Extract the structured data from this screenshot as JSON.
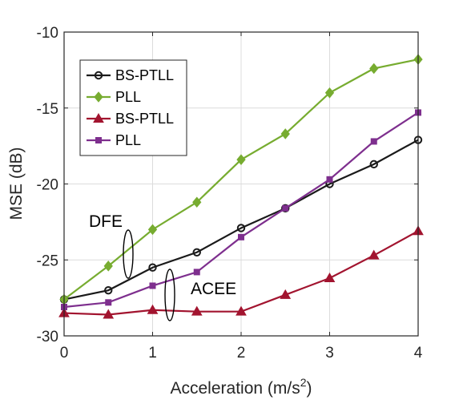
{
  "chart_data": {
    "type": "line",
    "xlabel_main": "Acceleration (m/s",
    "xlabel_sup": "2",
    "xlabel_close": ")",
    "ylabel": "MSE (dB)",
    "xlim": [
      0,
      4
    ],
    "ylim": [
      -30,
      -10
    ],
    "xticks": [
      0,
      1,
      2,
      3,
      4
    ],
    "yticks": [
      -30,
      -25,
      -20,
      -15,
      -10
    ],
    "grid": true,
    "legend_position": "top-left",
    "x": [
      0,
      0.5,
      1,
      1.5,
      2,
      2.5,
      3,
      3.5,
      4
    ],
    "series": [
      {
        "name": "BS-PTLL",
        "group": "DFE",
        "color": "#1a1a1a",
        "marker": "circle",
        "values": [
          -27.6,
          -27.0,
          -25.5,
          -24.5,
          -22.9,
          -21.6,
          -20.0,
          -18.7,
          -17.1
        ]
      },
      {
        "name": "PLL",
        "group": "DFE",
        "color": "#77ac30",
        "marker": "diamond",
        "values": [
          -27.6,
          -25.4,
          -23.0,
          -21.2,
          -18.4,
          -16.7,
          -14.0,
          -12.4,
          -11.8
        ]
      },
      {
        "name": "BS-PTLL",
        "group": "ACEE",
        "color": "#a2142f",
        "marker": "triangle",
        "values": [
          -28.5,
          -28.6,
          -28.3,
          -28.4,
          -28.4,
          -27.3,
          -26.2,
          -24.7,
          -23.1
        ]
      },
      {
        "name": "PLL",
        "group": "ACEE",
        "color": "#7e2f8e",
        "marker": "square",
        "values": [
          -28.1,
          -27.8,
          -26.7,
          -25.8,
          -23.5,
          -21.6,
          -19.7,
          -17.2,
          -15.3
        ]
      }
    ],
    "annotations": [
      {
        "text": "DFE",
        "x": 0.55,
        "y": -23.7
      },
      {
        "text": "ACEE",
        "x": 1.42,
        "y": -26.9
      }
    ]
  }
}
